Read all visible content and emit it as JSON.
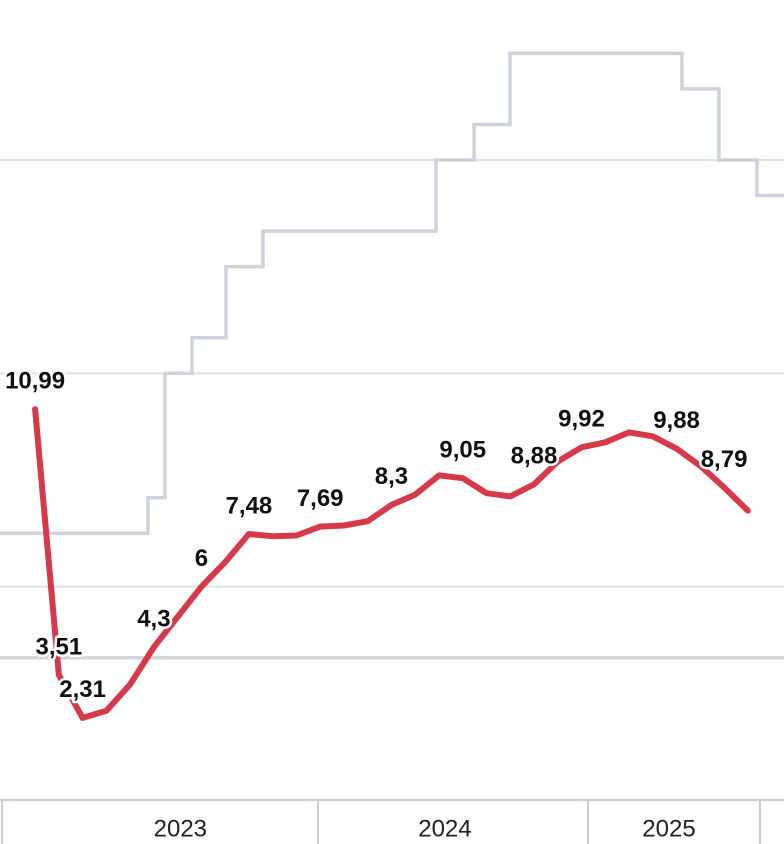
{
  "chart_data": {
    "type": "line",
    "xlim": [
      2022.822,
      2025.726
    ],
    "ylim": [
      0,
      22.5
    ],
    "yticks": [
      6,
      12,
      18
    ],
    "grid": true,
    "reference_line": 4,
    "xticks": [
      {
        "value": 2023.49,
        "label": "2023"
      },
      {
        "value": 2024.47,
        "label": "2024"
      },
      {
        "value": 2025.3,
        "label": "2025"
      }
    ],
    "x_separators": [
      2022.83,
      2024,
      2025,
      2025.637
    ],
    "series": [
      {
        "color": "#cdd3de",
        "step": "post",
        "x": [
          2022.822,
          2023.37,
          2023.433,
          2023.533,
          2023.659,
          2023.796,
          2024.437,
          2024.578,
          2024.711,
          2025.348,
          2025.485,
          2025.626
        ],
        "values": [
          7.5,
          8.5,
          12,
          13,
          15,
          16,
          18,
          19,
          21,
          20,
          18,
          17
        ]
      },
      {
        "color": "#d63a4a",
        "x": [
          2022.952,
          2023.04,
          2023.128,
          2023.216,
          2023.304,
          2023.392,
          2023.48,
          2023.568,
          2023.656,
          2023.744,
          2023.832,
          2023.92,
          2024.008,
          2024.096,
          2024.184,
          2024.272,
          2024.36,
          2024.448,
          2024.536,
          2024.624,
          2024.712,
          2024.8,
          2024.888,
          2024.976,
          2025.064,
          2025.152,
          2025.24,
          2025.328,
          2025.416,
          2025.504,
          2025.592
        ],
        "values": [
          10.99,
          3.51,
          2.31,
          2.51,
          3.25,
          4.3,
          5.15,
          6,
          6.69,
          7.48,
          7.42,
          7.44,
          7.69,
          7.72,
          7.84,
          8.3,
          8.59,
          9.13,
          9.05,
          8.63,
          8.54,
          8.88,
          9.52,
          9.92,
          10.06,
          10.34,
          10.23,
          9.88,
          9.4,
          8.79,
          8.14
        ],
        "value_labels": [
          "10,99",
          "3,51",
          "2,31",
          null,
          null,
          "4,3",
          null,
          "6",
          null,
          "7,48",
          null,
          null,
          "7,69",
          null,
          null,
          "8,3",
          null,
          null,
          "9,05",
          null,
          null,
          "8,88",
          null,
          "9,92",
          null,
          null,
          null,
          "9,88",
          null,
          "8,79",
          null
        ]
      }
    ]
  }
}
